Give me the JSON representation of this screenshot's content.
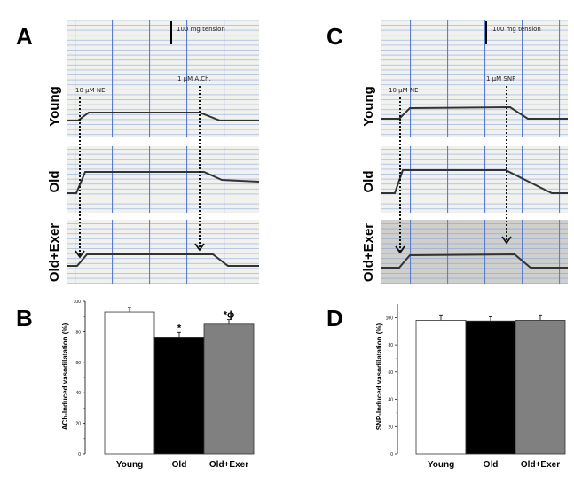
{
  "panels": {
    "A": {
      "letter": "A",
      "rows": [
        "Young",
        "Old",
        "Old+Exer"
      ],
      "scale_label": "100 mg tension",
      "drug1": "10 µM NE",
      "drug2": "1 µM A.Ch."
    },
    "C": {
      "letter": "C",
      "rows": [
        "Young",
        "Old",
        "Old+Exer"
      ],
      "scale_label": "100 mg tension",
      "drug1": "10 µM NE",
      "drug2": "1 µM SNP"
    },
    "B": {
      "letter": "B"
    },
    "D": {
      "letter": "D"
    }
  },
  "colors": {
    "young": "#ffffff",
    "old": "#000000",
    "old_exer": "#808080",
    "grid_major": "#5b7fd0",
    "grid_minor": "#9fb6e2",
    "paper": "#f1f1ee"
  },
  "chart_data": [
    {
      "type": "bar",
      "panel": "B",
      "categories": [
        "Young",
        "Old",
        "Old+Exer"
      ],
      "values": [
        93,
        76.5,
        85
      ],
      "errors": [
        3,
        3,
        3
      ],
      "annotations": [
        "",
        "*",
        "*ϕ"
      ],
      "ylabel": "ACh-Induced vasodilatation (%)",
      "ylim": [
        0,
        100
      ],
      "yticks": [
        "0",
        "20",
        "40",
        "60",
        "80",
        "100"
      ]
    },
    {
      "type": "bar",
      "panel": "D",
      "categories": [
        "Young",
        "Old",
        "Old+Exer"
      ],
      "values": [
        98,
        97.5,
        98
      ],
      "errors": [
        4,
        3,
        4
      ],
      "annotations": [
        "",
        "",
        ""
      ],
      "ylabel": "SNP-Induced vasodilatation (%)",
      "ylim": [
        0,
        110
      ],
      "yticks": [
        "0",
        "20",
        "40",
        "60",
        "80",
        "100"
      ]
    }
  ]
}
